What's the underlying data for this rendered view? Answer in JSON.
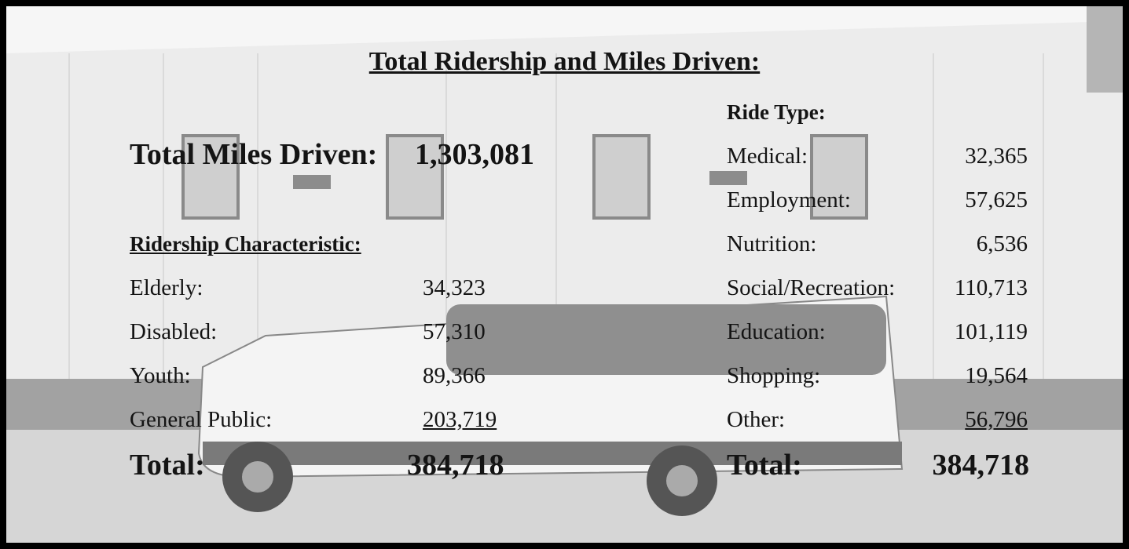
{
  "title": "Total Ridership and Miles Driven:",
  "total_miles": {
    "label": "Total Miles Driven:",
    "value": "1,303,081"
  },
  "ridership": {
    "heading": "Ridership Characteristic:",
    "rows": [
      [
        "Elderly:",
        "34,323"
      ],
      [
        "Disabled:",
        "57,310"
      ],
      [
        "Youth:",
        "89,366"
      ],
      [
        "General Public:",
        "203,719"
      ]
    ],
    "total": [
      "Total:",
      "384,718"
    ]
  },
  "ride_type": {
    "heading": "Ride Type:",
    "rows": [
      [
        "Medical:",
        "32,365"
      ],
      [
        "Employment:",
        "57,625"
      ],
      [
        "Nutrition:",
        "6,536"
      ],
      [
        "Social/Recreation:",
        "110,713"
      ],
      [
        "Education:",
        "101,119"
      ],
      [
        "Shopping:",
        "19,564"
      ],
      [
        "Other:",
        "56,796"
      ]
    ],
    "total": [
      "Total:",
      "384,718"
    ]
  }
}
